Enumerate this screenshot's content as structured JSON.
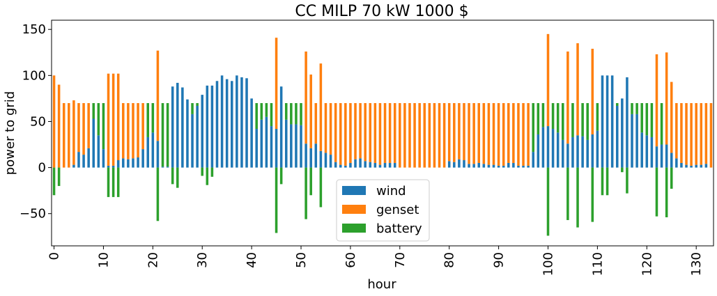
{
  "chart_data": {
    "type": "bar",
    "stacked": true,
    "title": "CC MILP 70 kW 1000 $",
    "xlabel": "hour",
    "ylabel": "power to grid",
    "ylim": [
      -85,
      160
    ],
    "yticks": [
      -50,
      0,
      50,
      100,
      150
    ],
    "ytick_labels": [
      "−50",
      "0",
      "50",
      "100",
      "150"
    ],
    "xticks": [
      0,
      10,
      20,
      30,
      40,
      50,
      60,
      70,
      80,
      90,
      100,
      110,
      120,
      130
    ],
    "xtick_labels": [
      "0",
      "10",
      "20",
      "30",
      "40",
      "50",
      "60",
      "70",
      "80",
      "90",
      "100",
      "110",
      "120",
      "130"
    ],
    "grid": false,
    "legend_position": "lower center",
    "colors": {
      "wind": "#1f77b4",
      "genset": "#ff7f0e",
      "battery": "#2ca02c"
    },
    "hours_count": 134,
    "series": [
      {
        "name": "wind",
        "values": [
          0,
          0,
          0,
          0,
          3,
          17,
          14,
          21,
          53,
          35,
          20,
          2,
          2,
          8,
          10,
          9,
          10,
          11,
          20,
          33,
          38,
          29,
          1,
          1,
          88,
          92,
          87,
          74,
          58,
          67,
          79,
          89,
          89,
          94,
          100,
          96,
          94,
          100,
          98,
          97,
          75,
          42,
          52,
          55,
          45,
          42,
          88,
          52,
          47,
          47,
          46,
          26,
          21,
          26,
          18,
          16,
          14,
          6,
          3,
          2,
          5,
          9,
          10,
          7,
          6,
          5,
          3,
          5,
          5,
          5,
          0,
          0,
          0,
          0,
          0,
          0,
          0,
          0,
          0,
          0,
          7,
          6,
          9,
          8,
          4,
          4,
          5,
          4,
          3,
          3,
          2,
          2,
          5,
          5,
          2,
          2,
          2,
          17,
          36,
          44,
          45,
          42,
          38,
          30,
          26,
          33,
          35,
          34,
          30,
          36,
          40,
          100,
          100,
          100,
          67,
          75,
          98,
          58,
          58,
          38,
          35,
          33,
          23,
          25,
          25,
          16,
          10,
          5,
          3,
          2,
          3,
          3,
          4,
          0
        ],
        "negatives": []
      },
      {
        "name": "genset",
        "values": [
          100,
          90,
          70,
          70,
          70,
          53,
          56,
          49,
          0,
          0,
          0,
          100,
          100,
          94,
          60,
          61,
          60,
          59,
          50,
          0,
          0,
          98,
          0,
          0,
          0,
          0,
          0,
          0,
          0,
          0,
          0,
          0,
          0,
          0,
          0,
          0,
          0,
          0,
          0,
          0,
          0,
          0,
          0,
          0,
          0,
          99,
          0,
          0,
          0,
          0,
          0,
          100,
          80,
          44,
          95,
          54,
          56,
          64,
          67,
          68,
          65,
          61,
          60,
          63,
          64,
          65,
          67,
          65,
          65,
          65,
          70,
          70,
          70,
          70,
          70,
          70,
          70,
          70,
          70,
          70,
          63,
          64,
          61,
          62,
          66,
          66,
          65,
          66,
          67,
          67,
          68,
          68,
          65,
          65,
          68,
          68,
          68,
          0,
          0,
          0,
          100,
          0,
          0,
          0,
          100,
          0,
          100,
          0,
          0,
          93,
          0,
          0,
          0,
          0,
          0,
          0,
          0,
          0,
          0,
          0,
          0,
          0,
          100,
          0,
          100,
          77,
          60,
          65,
          67,
          68,
          67,
          67,
          66,
          70
        ]
      },
      {
        "name": "battery",
        "values": [
          -30,
          -20,
          0,
          0,
          0,
          0,
          0,
          0,
          17,
          35,
          50,
          -32,
          -32,
          -32,
          0,
          0,
          0,
          0,
          0,
          37,
          32,
          -58,
          69,
          69,
          -18,
          -22,
          0,
          0,
          12,
          3,
          -9,
          -19,
          -10,
          0,
          0,
          0,
          0,
          0,
          0,
          0,
          0,
          28,
          18,
          15,
          25,
          -71,
          -18,
          18,
          23,
          23,
          24,
          -56,
          -30,
          0,
          -43,
          0,
          0,
          0,
          0,
          0,
          0,
          0,
          0,
          0,
          0,
          0,
          0,
          0,
          0,
          0,
          0,
          0,
          0,
          0,
          0,
          0,
          0,
          0,
          0,
          0,
          0,
          0,
          0,
          0,
          0,
          0,
          0,
          0,
          0,
          0,
          0,
          0,
          0,
          0,
          0,
          0,
          0,
          53,
          34,
          26,
          -74,
          28,
          32,
          40,
          -57,
          37,
          -65,
          36,
          40,
          -59,
          30,
          -30,
          -30,
          0,
          3,
          -5,
          -28,
          12,
          12,
          32,
          35,
          37,
          -53,
          45,
          -54,
          -23,
          0,
          0,
          0,
          0,
          0,
          0,
          0,
          0
        ]
      }
    ],
    "legend": [
      "wind",
      "genset",
      "battery"
    ]
  }
}
